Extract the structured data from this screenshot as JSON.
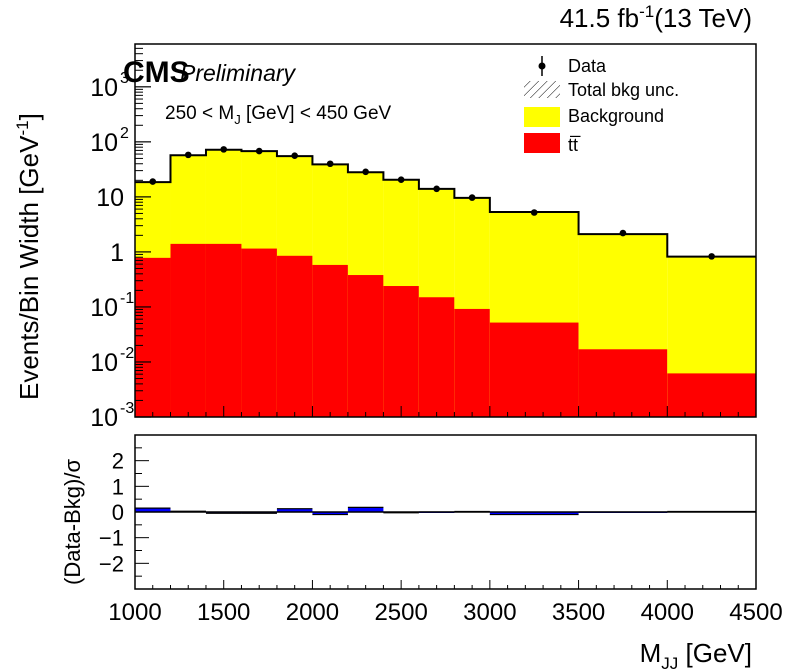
{
  "header": {
    "lumi_value": "41.5 fb",
    "lumi_exp": "-1",
    "lumi_energy": "(13 TeV)"
  },
  "labels": {
    "cms": "CMS",
    "preliminary": "Preliminary",
    "selection": "250 < M",
    "selection_sub": "J",
    "selection_rest": " [GeV] < 450 GeV"
  },
  "colors": {
    "background_fill": "#ffff00",
    "ttbar_fill": "#ff0000",
    "pull_fill": "#0000ff",
    "axis": "#000000"
  },
  "chart_data": [
    {
      "type": "bar",
      "subtype": "stacked-histogram-log",
      "ylabel": "Events/Bin Width [GeV",
      "ylabel_exp": "-1",
      "ylabel_close": "]",
      "yscale": "log",
      "ylim": [
        0.001,
        6000
      ],
      "yticks": [
        {
          "value": 0.001,
          "base": "10",
          "exp": "-3"
        },
        {
          "value": 0.01,
          "base": "10",
          "exp": "-2"
        },
        {
          "value": 0.1,
          "base": "10",
          "exp": "-1"
        },
        {
          "value": 1,
          "base": "1",
          "exp": ""
        },
        {
          "value": 10,
          "base": "10",
          "exp": ""
        },
        {
          "value": 100,
          "base": "10",
          "exp": "2"
        },
        {
          "value": 1000,
          "base": "10",
          "exp": "3"
        }
      ],
      "xlim": [
        1000,
        4500
      ],
      "bin_edges": [
        1000,
        1200,
        1400,
        1600,
        1800,
        2000,
        2200,
        2400,
        2600,
        2800,
        3000,
        3500,
        4000,
        4500
      ],
      "series": [
        {
          "name": "Background",
          "values": [
            18.5,
            57,
            72,
            68,
            55,
            39,
            28,
            20.5,
            14,
            9.6,
            5.3,
            2.1,
            0.82
          ]
        },
        {
          "name": "tt̅",
          "values": [
            0.78,
            1.4,
            1.4,
            1.15,
            0.85,
            0.58,
            0.38,
            0.24,
            0.15,
            0.092,
            0.052,
            0.017,
            0.0062
          ]
        }
      ],
      "data_points": {
        "name": "Data",
        "x": [
          1100,
          1300,
          1500,
          1700,
          1900,
          2100,
          2300,
          2500,
          2700,
          2900,
          3250,
          3750,
          4250
        ],
        "y": [
          19,
          58,
          73,
          68,
          56,
          40,
          28.5,
          20.5,
          14,
          9.7,
          5.2,
          2.2,
          0.83
        ]
      },
      "legend": {
        "position": "top-right",
        "entries": [
          {
            "label": "Data",
            "style": "marker"
          },
          {
            "label": "Total bkg unc.",
            "style": "hatch"
          },
          {
            "label": "Background",
            "style": "fill",
            "color": "#ffff00"
          },
          {
            "label": "tt̅",
            "style": "fill",
            "color": "#ff0000"
          }
        ]
      }
    },
    {
      "type": "bar",
      "subtype": "pull",
      "ylabel": "(Data-Bkg)/σ",
      "ylim": [
        -3,
        3
      ],
      "yticks": [
        -2,
        -1,
        0,
        1,
        2
      ],
      "xlim": [
        1000,
        4500
      ],
      "xticks": [
        1000,
        1500,
        2000,
        2500,
        3000,
        3500,
        4000,
        4500
      ],
      "xlabel": "M",
      "xlabel_sub": "JJ",
      "xlabel_rest": " [GeV]",
      "bin_edges": [
        1000,
        1200,
        1400,
        1600,
        1800,
        2000,
        2200,
        2400,
        2600,
        2800,
        3000,
        3500,
        4000,
        4500
      ],
      "values": [
        0.15,
        0.03,
        -0.05,
        -0.05,
        0.13,
        -0.1,
        0.18,
        -0.03,
        0.0,
        0.02,
        -0.1,
        0.0,
        0.02
      ]
    }
  ]
}
